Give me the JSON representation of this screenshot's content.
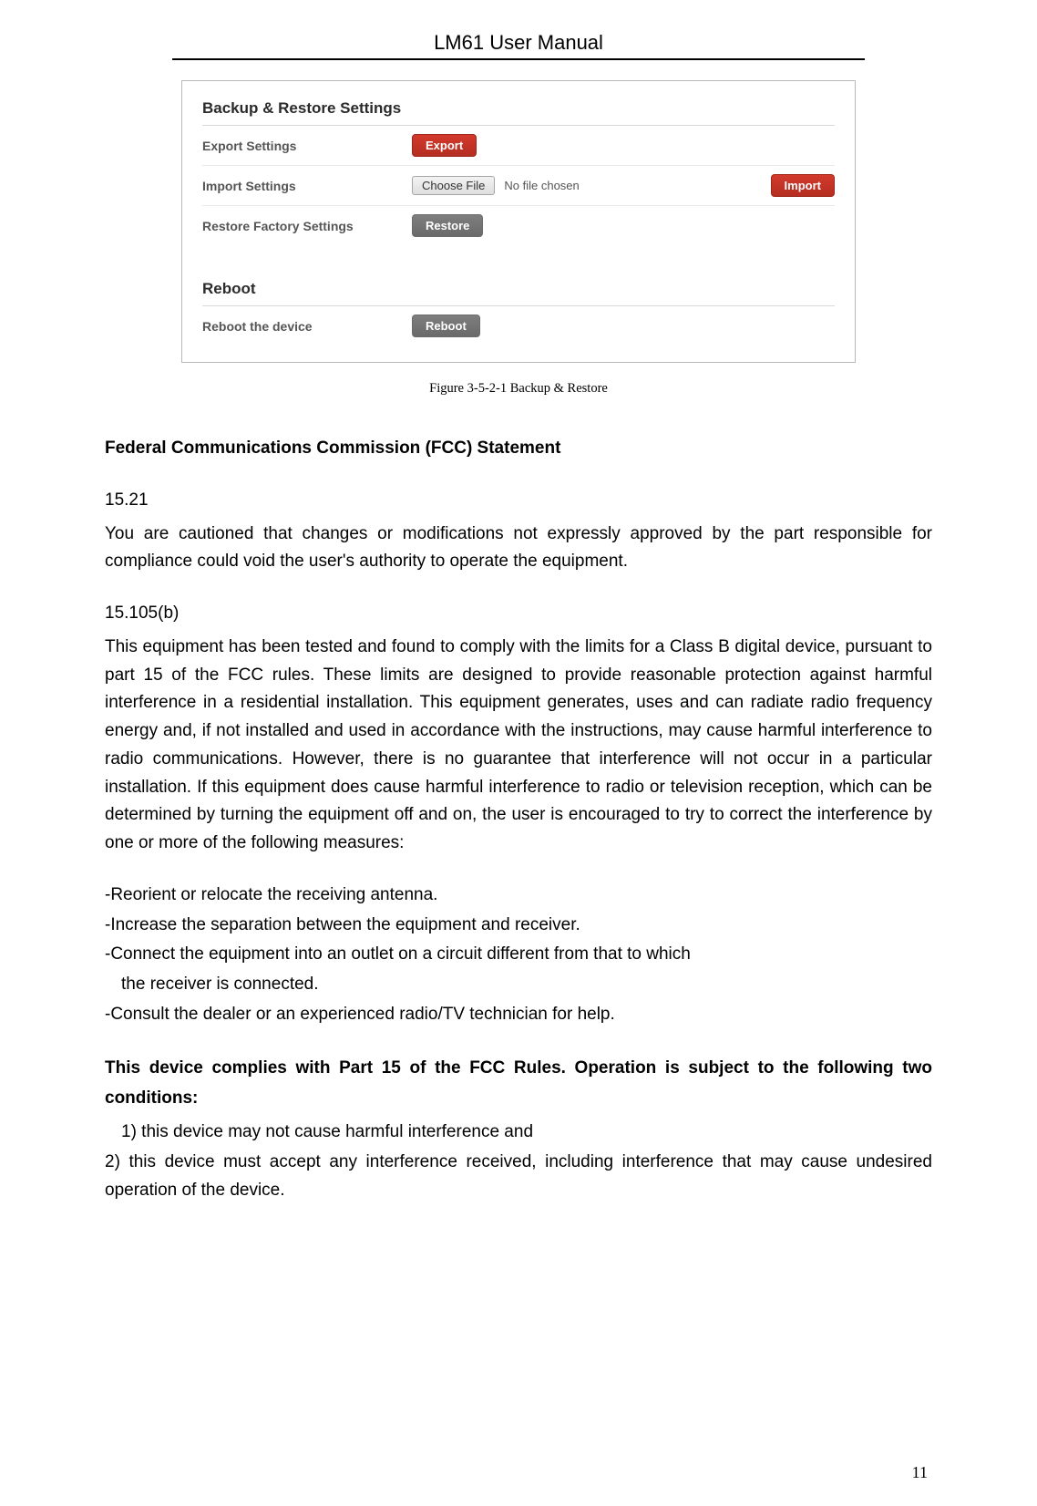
{
  "header": {
    "title": "LM61 User Manual"
  },
  "screenshot": {
    "section1_title": "Backup & Restore Settings",
    "export_label": "Export Settings",
    "export_btn": "Export",
    "import_label": "Import Settings",
    "choose_file_btn": "Choose File",
    "file_status": "No file chosen",
    "import_btn": "Import",
    "restore_label": "Restore Factory Settings",
    "restore_btn": "Restore",
    "section2_title": "Reboot",
    "reboot_label": "Reboot the device",
    "reboot_btn": "Reboot",
    "colors": {
      "btn_red_bg": "#d33a2c",
      "btn_gray_bg": "#6a6a6a",
      "border": "#b8b8b8"
    }
  },
  "caption": "Figure 3-5-2-1 Backup & Restore",
  "fcc": {
    "heading": "Federal Communications Commission (FCC) Statement",
    "s1_num": "15.21",
    "s1_p": "You are cautioned that changes or modifications not expressly approved by the part responsible for compliance could void the user's authority to operate the equipment.",
    "s2_num": "15.105(b)",
    "s2_p": "This equipment has been tested and found to comply with the limits for a Class B digital device, pursuant to part 15 of the FCC rules. These limits are designed to provide reasonable protection against harmful interference in a residential installation. This equipment generates, uses and can radiate radio frequency energy and, if not installed and used in accordance with the instructions, may cause harmful interference to radio communications. However, there is no guarantee that interference will not occur in a particular installation. If this equipment does cause harmful interference to radio or television reception, which can be determined by turning the equipment off and on, the user is encouraged to try to correct the interference by one or more of the following measures:",
    "b1": "-Reorient or relocate the receiving antenna.",
    "b2": "-Increase the separation between the equipment and receiver.",
    "b3a": "-Connect the equipment into an outlet on a circuit different from that to which",
    "b3b": "the receiver is connected.",
    "b4": "-Consult the dealer or an experienced radio/TV technician for help.",
    "comply_heading": "This device complies with Part 15 of the FCC Rules. Operation is subject to the following two conditions:",
    "c1": "1) this device may not cause harmful interference and",
    "c2": "2) this device must accept any interference received, including interference that may cause undesired operation of the device."
  },
  "page_number": "11"
}
